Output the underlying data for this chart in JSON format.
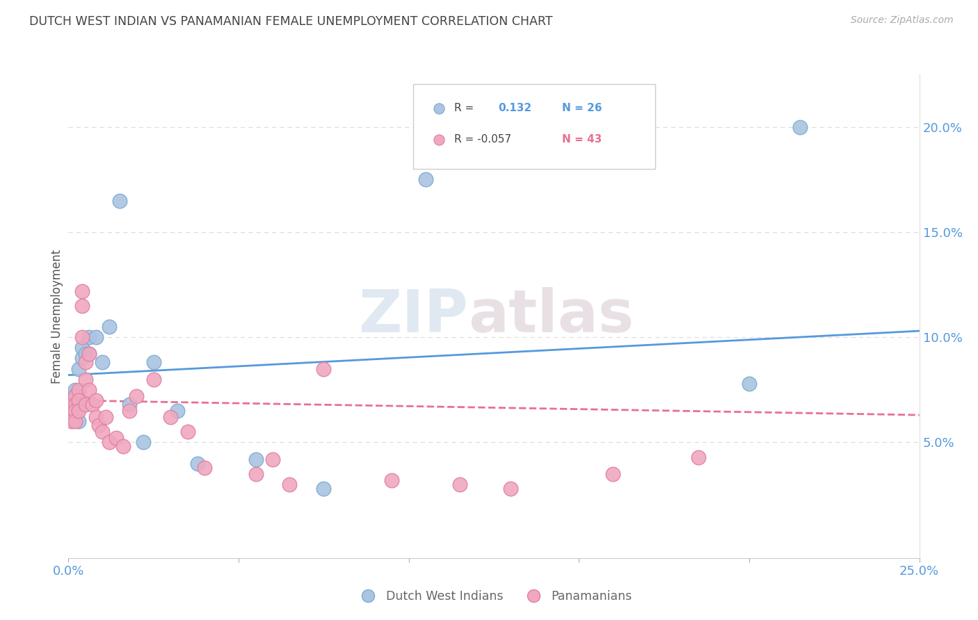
{
  "title": "DUTCH WEST INDIAN VS PANAMANIAN FEMALE UNEMPLOYMENT CORRELATION CHART",
  "source": "Source: ZipAtlas.com",
  "ylabel": "Female Unemployment",
  "ytick_labels": [
    "5.0%",
    "10.0%",
    "15.0%",
    "20.0%"
  ],
  "ytick_values": [
    0.05,
    0.1,
    0.15,
    0.2
  ],
  "xlim": [
    0.0,
    0.25
  ],
  "ylim": [
    -0.005,
    0.225
  ],
  "watermark_zip": "ZIP",
  "watermark_atlas": "atlas",
  "blue_color": "#aac4e2",
  "pink_color": "#f0a8bf",
  "blue_edge_color": "#7aaad0",
  "pink_edge_color": "#e080a0",
  "blue_line_color": "#5599dd",
  "pink_line_color": "#e87090",
  "title_color": "#444444",
  "axis_color": "#5599dd",
  "source_color": "#aaaaaa",
  "grid_color": "#dddddd",
  "blue_line_y0": 0.082,
  "blue_line_y1": 0.103,
  "pink_line_y0": 0.07,
  "pink_line_y1": 0.063,
  "dutch_west_indians_x": [
    0.001,
    0.001,
    0.002,
    0.002,
    0.003,
    0.003,
    0.003,
    0.004,
    0.004,
    0.005,
    0.006,
    0.006,
    0.008,
    0.01,
    0.012,
    0.015,
    0.018,
    0.022,
    0.025,
    0.032,
    0.038,
    0.055,
    0.075,
    0.105,
    0.2,
    0.215
  ],
  "dutch_west_indians_y": [
    0.068,
    0.072,
    0.065,
    0.075,
    0.06,
    0.068,
    0.085,
    0.09,
    0.095,
    0.092,
    0.092,
    0.1,
    0.1,
    0.088,
    0.105,
    0.165,
    0.068,
    0.05,
    0.088,
    0.065,
    0.04,
    0.042,
    0.028,
    0.175,
    0.078,
    0.2
  ],
  "panamanians_x": [
    0.001,
    0.001,
    0.001,
    0.001,
    0.002,
    0.002,
    0.002,
    0.002,
    0.003,
    0.003,
    0.003,
    0.004,
    0.004,
    0.004,
    0.005,
    0.005,
    0.005,
    0.006,
    0.006,
    0.007,
    0.008,
    0.008,
    0.009,
    0.01,
    0.011,
    0.012,
    0.014,
    0.016,
    0.018,
    0.02,
    0.025,
    0.03,
    0.035,
    0.04,
    0.055,
    0.06,
    0.065,
    0.075,
    0.095,
    0.115,
    0.13,
    0.16,
    0.185
  ],
  "panamanians_y": [
    0.07,
    0.068,
    0.065,
    0.06,
    0.072,
    0.068,
    0.065,
    0.06,
    0.075,
    0.07,
    0.065,
    0.122,
    0.115,
    0.1,
    0.088,
    0.08,
    0.068,
    0.092,
    0.075,
    0.068,
    0.07,
    0.062,
    0.058,
    0.055,
    0.062,
    0.05,
    0.052,
    0.048,
    0.065,
    0.072,
    0.08,
    0.062,
    0.055,
    0.038,
    0.035,
    0.042,
    0.03,
    0.085,
    0.032,
    0.03,
    0.028,
    0.035,
    0.043
  ]
}
